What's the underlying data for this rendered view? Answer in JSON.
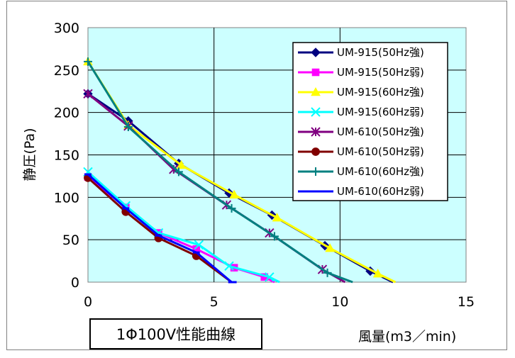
{
  "caption": "1Φ100V性能曲線",
  "chart_data": {
    "type": "line",
    "xlabel": "風量(m3／min)",
    "ylabel": "静圧(Pa)",
    "xlim": [
      0,
      15
    ],
    "ylim": [
      0,
      300
    ],
    "xticks": [
      0,
      5,
      10,
      15
    ],
    "yticks": [
      0,
      50,
      100,
      150,
      200,
      250,
      300
    ],
    "grid": true,
    "legend_position": "top-right",
    "plot_background": "#ccffff",
    "series": [
      {
        "name": "UM-915(50Hz強)",
        "color": "#000080",
        "marker": "diamond",
        "x": [
          0,
          1.6,
          3.6,
          5.6,
          7.3,
          9.4,
          11.2,
          12.1
        ],
        "y": [
          222,
          190,
          140,
          105,
          79,
          43,
          13,
          0
        ]
      },
      {
        "name": "UM-915(50Hz弱)",
        "color": "#ff00ff",
        "marker": "square",
        "x": [
          0,
          1.5,
          2.8,
          4.3,
          5.8,
          7.0,
          7.4
        ],
        "y": [
          124,
          88,
          58,
          39,
          17,
          6,
          0
        ]
      },
      {
        "name": "UM-915(60Hz強)",
        "color": "#ffff00",
        "marker": "triangle",
        "x": [
          0,
          1.6,
          3.7,
          5.8,
          7.5,
          9.6,
          11.5,
          12.2
        ],
        "y": [
          260,
          185,
          138,
          103,
          76,
          40,
          10,
          0
        ]
      },
      {
        "name": "UM-915(60Hz弱)",
        "color": "#00ffff",
        "marker": "x",
        "x": [
          0,
          1.5,
          2.8,
          4.4,
          5.6,
          7.2,
          7.6
        ],
        "y": [
          130,
          90,
          58,
          44,
          19,
          6,
          0
        ]
      },
      {
        "name": "UM-610(50Hz強)",
        "color": "#800080",
        "marker": "asterisk",
        "x": [
          0,
          1.6,
          3.4,
          5.5,
          7.2,
          9.3,
          10.2
        ],
        "y": [
          222,
          184,
          133,
          91,
          58,
          15,
          0
        ]
      },
      {
        "name": "UM-610(50Hz弱)",
        "color": "#800000",
        "marker": "circle",
        "x": [
          0,
          1.5,
          2.8,
          4.3,
          5.7
        ],
        "y": [
          123,
          83,
          52,
          31,
          0
        ]
      },
      {
        "name": "UM-610(60Hz強)",
        "color": "#008080",
        "marker": "plus",
        "x": [
          0,
          1.6,
          3.6,
          5.7,
          7.4,
          9.5,
          10.5
        ],
        "y": [
          260,
          183,
          130,
          87,
          54,
          11,
          0
        ]
      },
      {
        "name": "UM-610(60Hz弱)",
        "color": "#0000ff",
        "marker": "dash",
        "x": [
          0,
          1.5,
          2.8,
          4.3,
          5.7,
          5.9
        ],
        "y": [
          127,
          87,
          55,
          35,
          0,
          0
        ]
      }
    ]
  }
}
